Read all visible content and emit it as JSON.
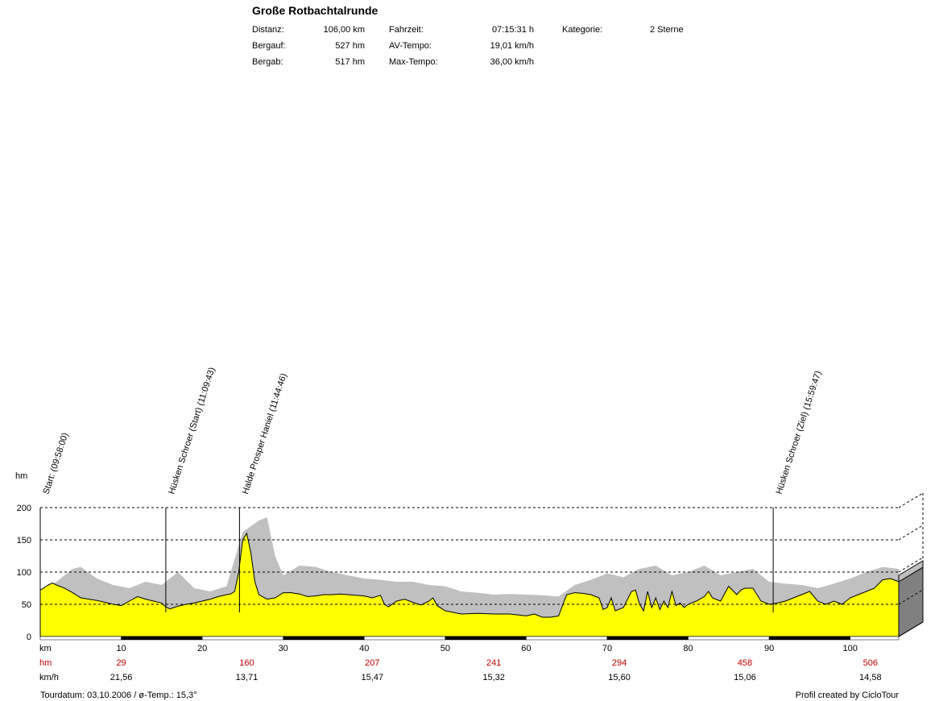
{
  "header": {
    "title": "Große Rotbachtalrunde",
    "distanz_label": "Distanz:",
    "distanz_value": "106,00 km",
    "bergauf_label": "Bergauf:",
    "bergauf_value": "527 hm",
    "bergab_label": "Bergab:",
    "bergab_value": "517 hm",
    "fahrzeit_label": "Fahrzeit:",
    "fahrzeit_value": "07:15:31 h",
    "avtempo_label": "AV-Tempo:",
    "avtempo_value": "19,01 km/h",
    "maxtempo_label": "Max-Tempo:",
    "maxtempo_value": "36,00 km/h",
    "kategorie_label": "Kategorie:",
    "kategorie_value": "2 Sterne"
  },
  "footer": {
    "tourdatum": "Tourdatum: 03.10.2006  /  ø-Temp.: 15,3°",
    "credit": "Profil created by CicloTour"
  },
  "colors": {
    "profile_fill": "#ffff00",
    "speed_fill": "#c0c0c0",
    "hm_row_text": "#c00000",
    "km_bar": "#000000"
  },
  "chart_data": {
    "type": "area",
    "ylabel": "hm",
    "xlabel": "km",
    "ylim": [
      0,
      200
    ],
    "xlim": [
      0,
      106
    ],
    "y_ticks": [
      0,
      50,
      100,
      150,
      200
    ],
    "x_ticks": [
      10,
      20,
      30,
      40,
      50,
      60,
      70,
      80,
      90,
      100
    ],
    "grid": true,
    "series": [
      {
        "kind": "elevation",
        "x": [
          0,
          1,
          1.5,
          2,
          3,
          4,
          5,
          6,
          7,
          8,
          9,
          10,
          11,
          12,
          13,
          14,
          15,
          15.5,
          16,
          17,
          18,
          19,
          20,
          21,
          22,
          23,
          23.5,
          24,
          24.5,
          25,
          25.5,
          26,
          26.5,
          27,
          28,
          29,
          30,
          31,
          32,
          33,
          34,
          35,
          36,
          37,
          38,
          39,
          40,
          41,
          42,
          42.5,
          43,
          44,
          45,
          46,
          47,
          48,
          48.5,
          49,
          50,
          52,
          54,
          56,
          58,
          60,
          61,
          62,
          63,
          64,
          65,
          66,
          67,
          68,
          69,
          69.5,
          70,
          70.5,
          71,
          72,
          73,
          73.5,
          74,
          74.5,
          75,
          75.5,
          76,
          76.5,
          77,
          77.5,
          78,
          78.5,
          79,
          79.5,
          80,
          81,
          82,
          82.5,
          83,
          84,
          85,
          86,
          86.5,
          87,
          88,
          89,
          90,
          91,
          92,
          93,
          94,
          95,
          96,
          97,
          98,
          99,
          100,
          101,
          102,
          103,
          104,
          105,
          106
        ],
        "values": [
          72,
          80,
          83,
          80,
          75,
          68,
          60,
          58,
          56,
          53,
          50,
          48,
          55,
          62,
          58,
          55,
          52,
          46,
          43,
          47,
          50,
          52,
          55,
          58,
          62,
          65,
          66,
          70,
          100,
          150,
          160,
          130,
          85,
          65,
          58,
          60,
          68,
          68,
          66,
          62,
          63,
          65,
          65,
          66,
          65,
          64,
          63,
          60,
          64,
          50,
          46,
          55,
          58,
          53,
          49,
          55,
          60,
          48,
          40,
          35,
          36,
          35,
          35,
          32,
          35,
          30,
          30,
          32,
          65,
          68,
          67,
          65,
          60,
          42,
          45,
          60,
          40,
          45,
          70,
          72,
          50,
          40,
          70,
          45,
          60,
          42,
          55,
          45,
          70,
          48,
          52,
          45,
          50,
          55,
          62,
          70,
          60,
          55,
          78,
          65,
          72,
          75,
          75,
          55,
          50,
          52,
          55,
          60,
          65,
          70,
          55,
          50,
          55,
          50,
          60,
          65,
          70,
          75,
          88,
          90,
          85
        ],
        "note": "km-by-km height of the yellow profile, read off the plot"
      },
      {
        "kind": "speed-band",
        "x": [
          0,
          2,
          4,
          5,
          7,
          9,
          11,
          13,
          15,
          17,
          19,
          21,
          23,
          25,
          27,
          28,
          29,
          30,
          32,
          34,
          36,
          38,
          40,
          42,
          44,
          46,
          48,
          50,
          52,
          54,
          56,
          58,
          60,
          62,
          64,
          66,
          68,
          70,
          72,
          74,
          76,
          78,
          80,
          82,
          84,
          86,
          88,
          90,
          92,
          94,
          96,
          98,
          100,
          102,
          104,
          106
        ],
        "values": [
          72,
          85,
          105,
          108,
          90,
          80,
          75,
          85,
          80,
          100,
          75,
          70,
          78,
          162,
          180,
          185,
          125,
          95,
          110,
          108,
          100,
          95,
          90,
          88,
          85,
          85,
          80,
          78,
          70,
          68,
          65,
          66,
          65,
          64,
          62,
          80,
          88,
          98,
          92,
          105,
          110,
          95,
          100,
          110,
          95,
          100,
          105,
          85,
          82,
          80,
          75,
          82,
          90,
          100,
          108,
          105
        ]
      }
    ],
    "waypoints": [
      {
        "label": "Start: (09:58:00)",
        "km": 0
      },
      {
        "label": "Hüsken Schroer (Start)  (11:09:43)",
        "km": 15.5
      },
      {
        "label": "Halde Prosper Haniel  (11:44:46)",
        "km": 24.6
      },
      {
        "label": "Hüsken Schroer (Ziel) (15:59:47)",
        "km": 90.5
      }
    ],
    "rows": {
      "hm_label": "hm",
      "hm_values": [
        {
          "km": 10,
          "value": "29"
        },
        {
          "km": 25.5,
          "value": "160"
        },
        {
          "km": 41,
          "value": "207"
        },
        {
          "km": 56,
          "value": "241"
        },
        {
          "km": 71.5,
          "value": "294"
        },
        {
          "km": 87,
          "value": "458"
        },
        {
          "km": 102.5,
          "value": "506"
        }
      ],
      "speed_label": "km/h",
      "speed_values": [
        {
          "km": 10,
          "value": "21,56"
        },
        {
          "km": 25.5,
          "value": "13,71"
        },
        {
          "km": 41,
          "value": "15,47"
        },
        {
          "km": 56,
          "value": "15,32"
        },
        {
          "km": 71.5,
          "value": "15,60"
        },
        {
          "km": 87,
          "value": "15,06"
        },
        {
          "km": 102.5,
          "value": "14,58"
        }
      ]
    }
  }
}
